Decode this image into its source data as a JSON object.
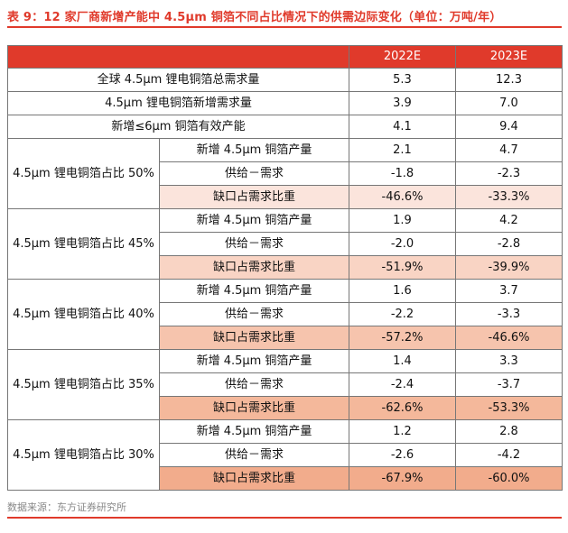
{
  "title": "表 9：12 家厂商新增产能中 4.5μm 铜箔不同占比情况下的供需边际变化（单位：万吨/年）",
  "header": {
    "col1": "",
    "col2": "2022E",
    "col3": "2023E"
  },
  "summary_rows": [
    {
      "label": "全球 4.5μm 锂电铜箔总需求量",
      "v2022": "5.3",
      "v2023": "12.3"
    },
    {
      "label": "4.5μm 锂电铜箔新增需求量",
      "v2022": "3.9",
      "v2023": "7.0"
    },
    {
      "label": "新增≤6μm 铜箔有效产能",
      "v2022": "4.1",
      "v2023": "9.4"
    }
  ],
  "groups": [
    {
      "label": "4.5μm 锂电铜箔占比 50%",
      "rows": [
        {
          "label": "新增 4.5μm 铜箔产量",
          "v2022": "2.1",
          "v2023": "4.7"
        },
        {
          "label": "供给－需求",
          "v2022": "-1.8",
          "v2023": "-2.3"
        },
        {
          "label": "缺口占需求比重",
          "v2022": "-46.6%",
          "v2023": "-33.3%"
        }
      ]
    },
    {
      "label": "4.5μm 锂电铜箔占比 45%",
      "rows": [
        {
          "label": "新增 4.5μm 铜箔产量",
          "v2022": "1.9",
          "v2023": "4.2"
        },
        {
          "label": "供给－需求",
          "v2022": "-2.0",
          "v2023": "-2.8"
        },
        {
          "label": "缺口占需求比重",
          "v2022": "-51.9%",
          "v2023": "-39.9%"
        }
      ]
    },
    {
      "label": "4.5μm 锂电铜箔占比 40%",
      "rows": [
        {
          "label": "新增 4.5μm 铜箔产量",
          "v2022": "1.6",
          "v2023": "3.7"
        },
        {
          "label": "供给－需求",
          "v2022": "-2.2",
          "v2023": "-3.3"
        },
        {
          "label": "缺口占需求比重",
          "v2022": "-57.2%",
          "v2023": "-46.6%"
        }
      ]
    },
    {
      "label": "4.5μm 锂电铜箔占比 35%",
      "rows": [
        {
          "label": "新增 4.5μm 铜箔产量",
          "v2022": "1.4",
          "v2023": "3.3"
        },
        {
          "label": "供给－需求",
          "v2022": "-2.4",
          "v2023": "-3.7"
        },
        {
          "label": "缺口占需求比重",
          "v2022": "-62.6%",
          "v2023": "-53.3%"
        }
      ]
    },
    {
      "label": "4.5μm 锂电铜箔占比 30%",
      "rows": [
        {
          "label": "新增 4.5μm 铜箔产量",
          "v2022": "1.2",
          "v2023": "2.8"
        },
        {
          "label": "供给－需求",
          "v2022": "-2.6",
          "v2023": "-4.2"
        },
        {
          "label": "缺口占需求比重",
          "v2022": "-67.9%",
          "v2023": "-60.0%"
        }
      ]
    }
  ],
  "source": "数据来源：东方证券研究所",
  "colors": {
    "accent": "#e03a2b",
    "gap_shades": [
      "#fbe4dc",
      "#f9d4c4",
      "#f6c4ad",
      "#f4b89b",
      "#f2ac8c"
    ]
  }
}
